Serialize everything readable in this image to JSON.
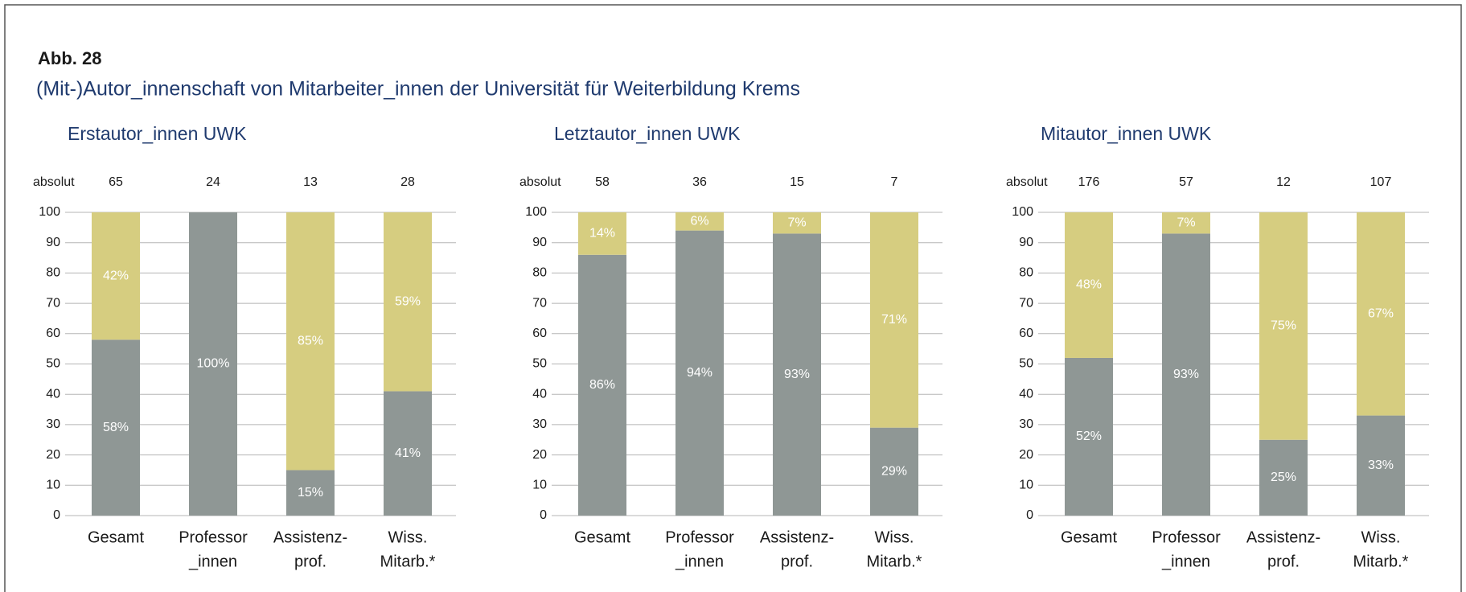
{
  "header": {
    "figure_label": "Abb. 28",
    "title": "(Mit-)Autor_innenschaft von Mitarbeiter_innen der Universität für Weiterbildung Krems"
  },
  "chart_data": [
    {
      "type": "stacked_bar",
      "title": "Erstautor_innen UWK",
      "absolute_label": "absolut",
      "absolute_values": [
        65,
        24,
        13,
        28
      ],
      "categories": [
        [
          "Gesamt"
        ],
        [
          "Professor",
          "_innen"
        ],
        [
          "Assistenz-",
          "prof."
        ],
        [
          "Wiss.",
          "Mitarb.*"
        ]
      ],
      "series": [
        {
          "color": "#8f9795",
          "values": [
            58,
            100,
            15,
            41
          ],
          "value_labels": [
            "58%",
            "100%",
            "15%",
            "41%"
          ]
        },
        {
          "color": "#d6cd80",
          "values": [
            42,
            0,
            85,
            59
          ],
          "value_labels": [
            "42%",
            null,
            "85%",
            "59%"
          ]
        }
      ],
      "ylim": [
        0,
        100
      ],
      "yticks": [
        0,
        10,
        20,
        30,
        40,
        50,
        60,
        70,
        80,
        90,
        100
      ],
      "grid": true
    },
    {
      "type": "stacked_bar",
      "title": "Letztautor_innen UWK",
      "absolute_label": "absolut",
      "absolute_values": [
        58,
        36,
        15,
        7
      ],
      "categories": [
        [
          "Gesamt"
        ],
        [
          "Professor",
          "_innen"
        ],
        [
          "Assistenz-",
          "prof."
        ],
        [
          "Wiss.",
          "Mitarb.*"
        ]
      ],
      "series": [
        {
          "color": "#8f9795",
          "values": [
            86,
            94,
            93,
            29
          ],
          "value_labels": [
            "86%",
            "94%",
            "93%",
            "29%"
          ]
        },
        {
          "color": "#d6cd80",
          "values": [
            14,
            6,
            7,
            71
          ],
          "value_labels": [
            "14%",
            "6%",
            "7%",
            "71%"
          ]
        }
      ],
      "ylim": [
        0,
        100
      ],
      "yticks": [
        0,
        10,
        20,
        30,
        40,
        50,
        60,
        70,
        80,
        90,
        100
      ],
      "grid": true
    },
    {
      "type": "stacked_bar",
      "title": "Mitautor_innen UWK",
      "absolute_label": "absolut",
      "absolute_values": [
        176,
        57,
        12,
        107
      ],
      "categories": [
        [
          "Gesamt"
        ],
        [
          "Professor",
          "_innen"
        ],
        [
          "Assistenz-",
          "prof."
        ],
        [
          "Wiss.",
          "Mitarb.*"
        ]
      ],
      "series": [
        {
          "color": "#8f9795",
          "values": [
            52,
            93,
            25,
            33
          ],
          "value_labels": [
            "52%",
            "93%",
            "25%",
            "33%"
          ]
        },
        {
          "color": "#d6cd80",
          "values": [
            48,
            7,
            75,
            67
          ],
          "value_labels": [
            "48%",
            "7%",
            "75%",
            "67%"
          ]
        }
      ],
      "ylim": [
        0,
        100
      ],
      "yticks": [
        0,
        10,
        20,
        30,
        40,
        50,
        60,
        70,
        80,
        90,
        100
      ],
      "grid": true
    }
  ]
}
